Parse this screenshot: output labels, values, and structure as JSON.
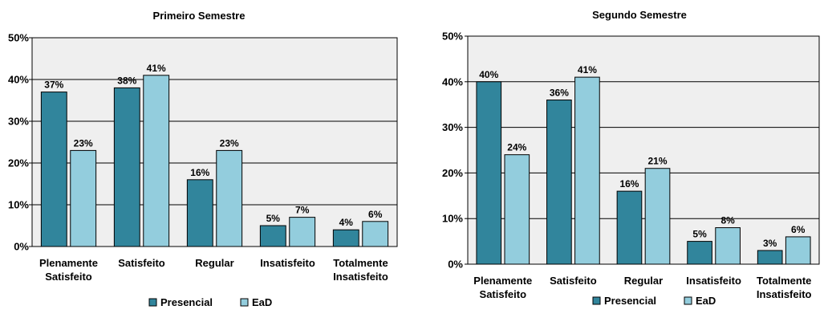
{
  "chart_data": [
    {
      "type": "bar",
      "title": "Primeiro Semestre",
      "categories": [
        [
          "Plenamente",
          "Satisfeito"
        ],
        [
          "Satisfeito"
        ],
        [
          "Regular"
        ],
        [
          "Insatisfeito"
        ],
        [
          "Totalmente",
          "Insatisfeito"
        ]
      ],
      "series": [
        {
          "name": "Presencial",
          "values": [
            37,
            38,
            16,
            5,
            4
          ],
          "color": "#31859c"
        },
        {
          "name": "EaD",
          "values": [
            23,
            41,
            23,
            7,
            6
          ],
          "color": "#93cddd"
        }
      ],
      "ylim": [
        0,
        50
      ],
      "yticks": [
        0,
        10,
        20,
        30,
        40,
        50
      ],
      "ytick_labels": [
        "0%",
        "10%",
        "20%",
        "30%",
        "40%",
        "50%"
      ],
      "value_labels": [
        [
          "37%",
          "38%",
          "16%",
          "5%",
          "4%"
        ],
        [
          "23%",
          "41%",
          "23%",
          "7%",
          "6%"
        ]
      ],
      "plot_bg": "#efefef",
      "legend_position": "bottom",
      "xlabel": "",
      "ylabel": ""
    },
    {
      "type": "bar",
      "title": "Segundo Semestre",
      "categories": [
        [
          "Plenamente",
          "Satisfeito"
        ],
        [
          "Satisfeito"
        ],
        [
          "Regular"
        ],
        [
          "Insatisfeito"
        ],
        [
          "Totalmente",
          "Insatisfeito"
        ]
      ],
      "series": [
        {
          "name": "Presencial",
          "values": [
            40,
            36,
            16,
            5,
            3
          ],
          "color": "#31859c"
        },
        {
          "name": "EaD",
          "values": [
            24,
            41,
            21,
            8,
            6
          ],
          "color": "#93cddd"
        }
      ],
      "ylim": [
        0,
        50
      ],
      "yticks": [
        0,
        10,
        20,
        30,
        40,
        50
      ],
      "ytick_labels": [
        "0%",
        "10%",
        "20%",
        "30%",
        "40%",
        "50%"
      ],
      "value_labels": [
        [
          "40%",
          "36%",
          "16%",
          "5%",
          "3%"
        ],
        [
          "24%",
          "41%",
          "21%",
          "8%",
          "6%"
        ]
      ],
      "plot_bg": "#efefef",
      "legend_position": "bottom",
      "xlabel": "",
      "ylabel": ""
    }
  ]
}
